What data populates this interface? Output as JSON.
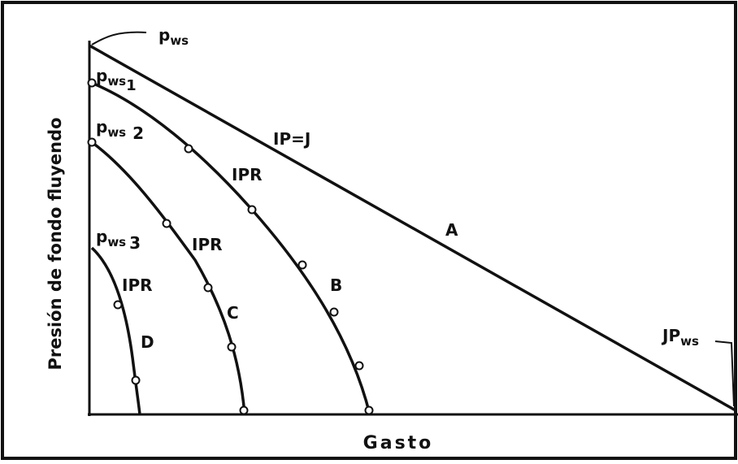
{
  "diagram": {
    "y_axis_label": "Presión de fondo fluyendo",
    "x_axis_label": "Gasto",
    "labels": {
      "pws": {
        "text": "p",
        "sub": "ws"
      },
      "pws1": {
        "text": "p",
        "sub": "ws",
        "index": "1"
      },
      "pws2": {
        "text": "p",
        "sub": "ws",
        "index": "2"
      },
      "pws3": {
        "text": "p",
        "sub": "ws",
        "index": "3"
      },
      "line_a_eq": "IP=J",
      "ipr_b": "IPR",
      "ipr_c": "IPR",
      "ipr_d": "IPR",
      "curve_a": "A",
      "curve_b": "B",
      "curve_c": "C",
      "curve_d": "D",
      "jpws": {
        "text": "JP",
        "sub": "ws"
      }
    }
  }
}
